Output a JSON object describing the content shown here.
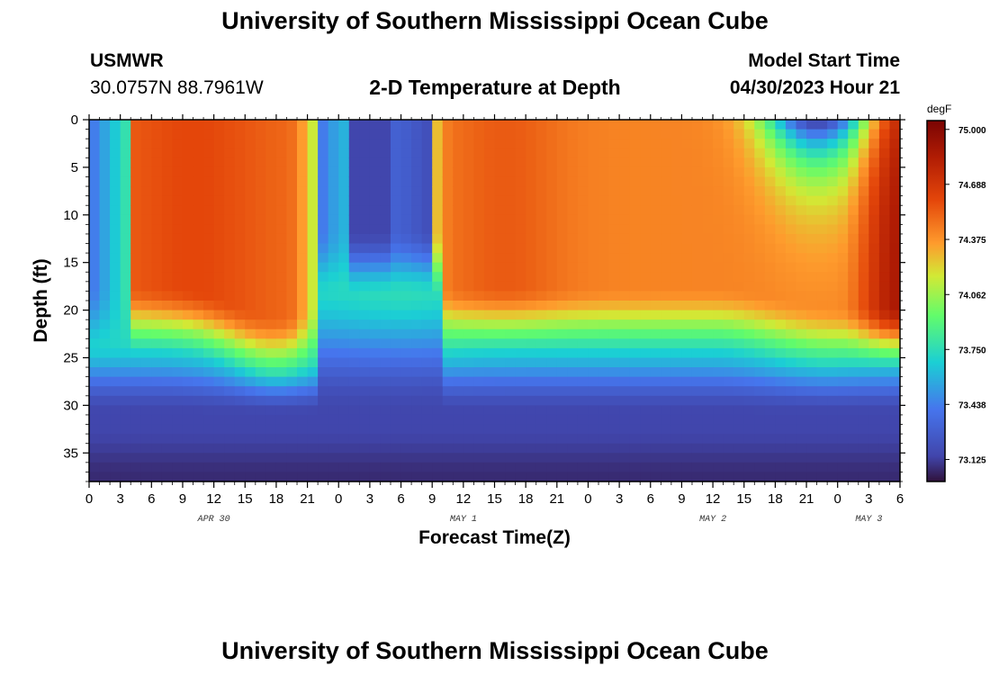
{
  "header": {
    "title_top": "University of Southern Mississippi Ocean Cube",
    "station_name": "USMWR",
    "station_coords": "30.0757N  88.7961W",
    "plot_title": "2-D Temperature at Depth",
    "model_start_label": "Model Start Time",
    "model_start_value": "04/30/2023 Hour 21",
    "title_bottom": "University of Southern Mississippi Ocean Cube"
  },
  "chart_data": {
    "type": "heatmap",
    "title": "2-D Temperature at Depth",
    "xlabel": "Forecast Time(Z)",
    "ylabel": "Depth (ft)",
    "x_tick_labels": [
      "0",
      "3",
      "6",
      "9",
      "12",
      "15",
      "18",
      "21",
      "0",
      "3",
      "6",
      "9",
      "12",
      "15",
      "18",
      "21",
      "0",
      "3",
      "6",
      "9",
      "12",
      "15",
      "18",
      "21",
      "0",
      "3",
      "6"
    ],
    "x_range_hours": [
      0,
      78
    ],
    "x_tick_step_hours": 3,
    "date_labels": [
      {
        "label": "APR 30",
        "hour": 12
      },
      {
        "label": "MAY 1",
        "hour": 36
      },
      {
        "label": "MAY 2",
        "hour": 60
      },
      {
        "label": "MAY 3",
        "hour": 75
      }
    ],
    "y_tick_labels": [
      "0",
      "5",
      "10",
      "15",
      "20",
      "25",
      "30",
      "35"
    ],
    "y_ticks": [
      0,
      5,
      10,
      15,
      20,
      25,
      30,
      35
    ],
    "ylim": [
      0,
      38
    ],
    "y_inverted": true,
    "colorbar": {
      "unit": "degF",
      "tick_labels": [
        "75.000",
        "74.688",
        "74.375",
        "74.062",
        "73.750",
        "73.438",
        "73.125"
      ],
      "ticks": [
        75.0,
        74.688,
        74.375,
        74.062,
        73.75,
        73.438,
        73.125
      ],
      "range": [
        73.0,
        75.05
      ]
    },
    "grid_resolution": {
      "columns": 78,
      "rows": 38
    },
    "approx_field_description_points": [
      {
        "hour": 0,
        "depth": 10,
        "value": 73.5
      },
      {
        "hour": 10,
        "depth": 8,
        "value": 74.5
      },
      {
        "hour": 26,
        "depth": 8,
        "value": 73.2
      },
      {
        "hour": 40,
        "depth": 6,
        "value": 74.6
      },
      {
        "hour": 70,
        "depth": 1,
        "value": 73.1
      },
      {
        "hour": 78,
        "depth": 8,
        "value": 74.95
      },
      {
        "hour": 40,
        "depth": 35,
        "value": 73.2
      }
    ]
  }
}
